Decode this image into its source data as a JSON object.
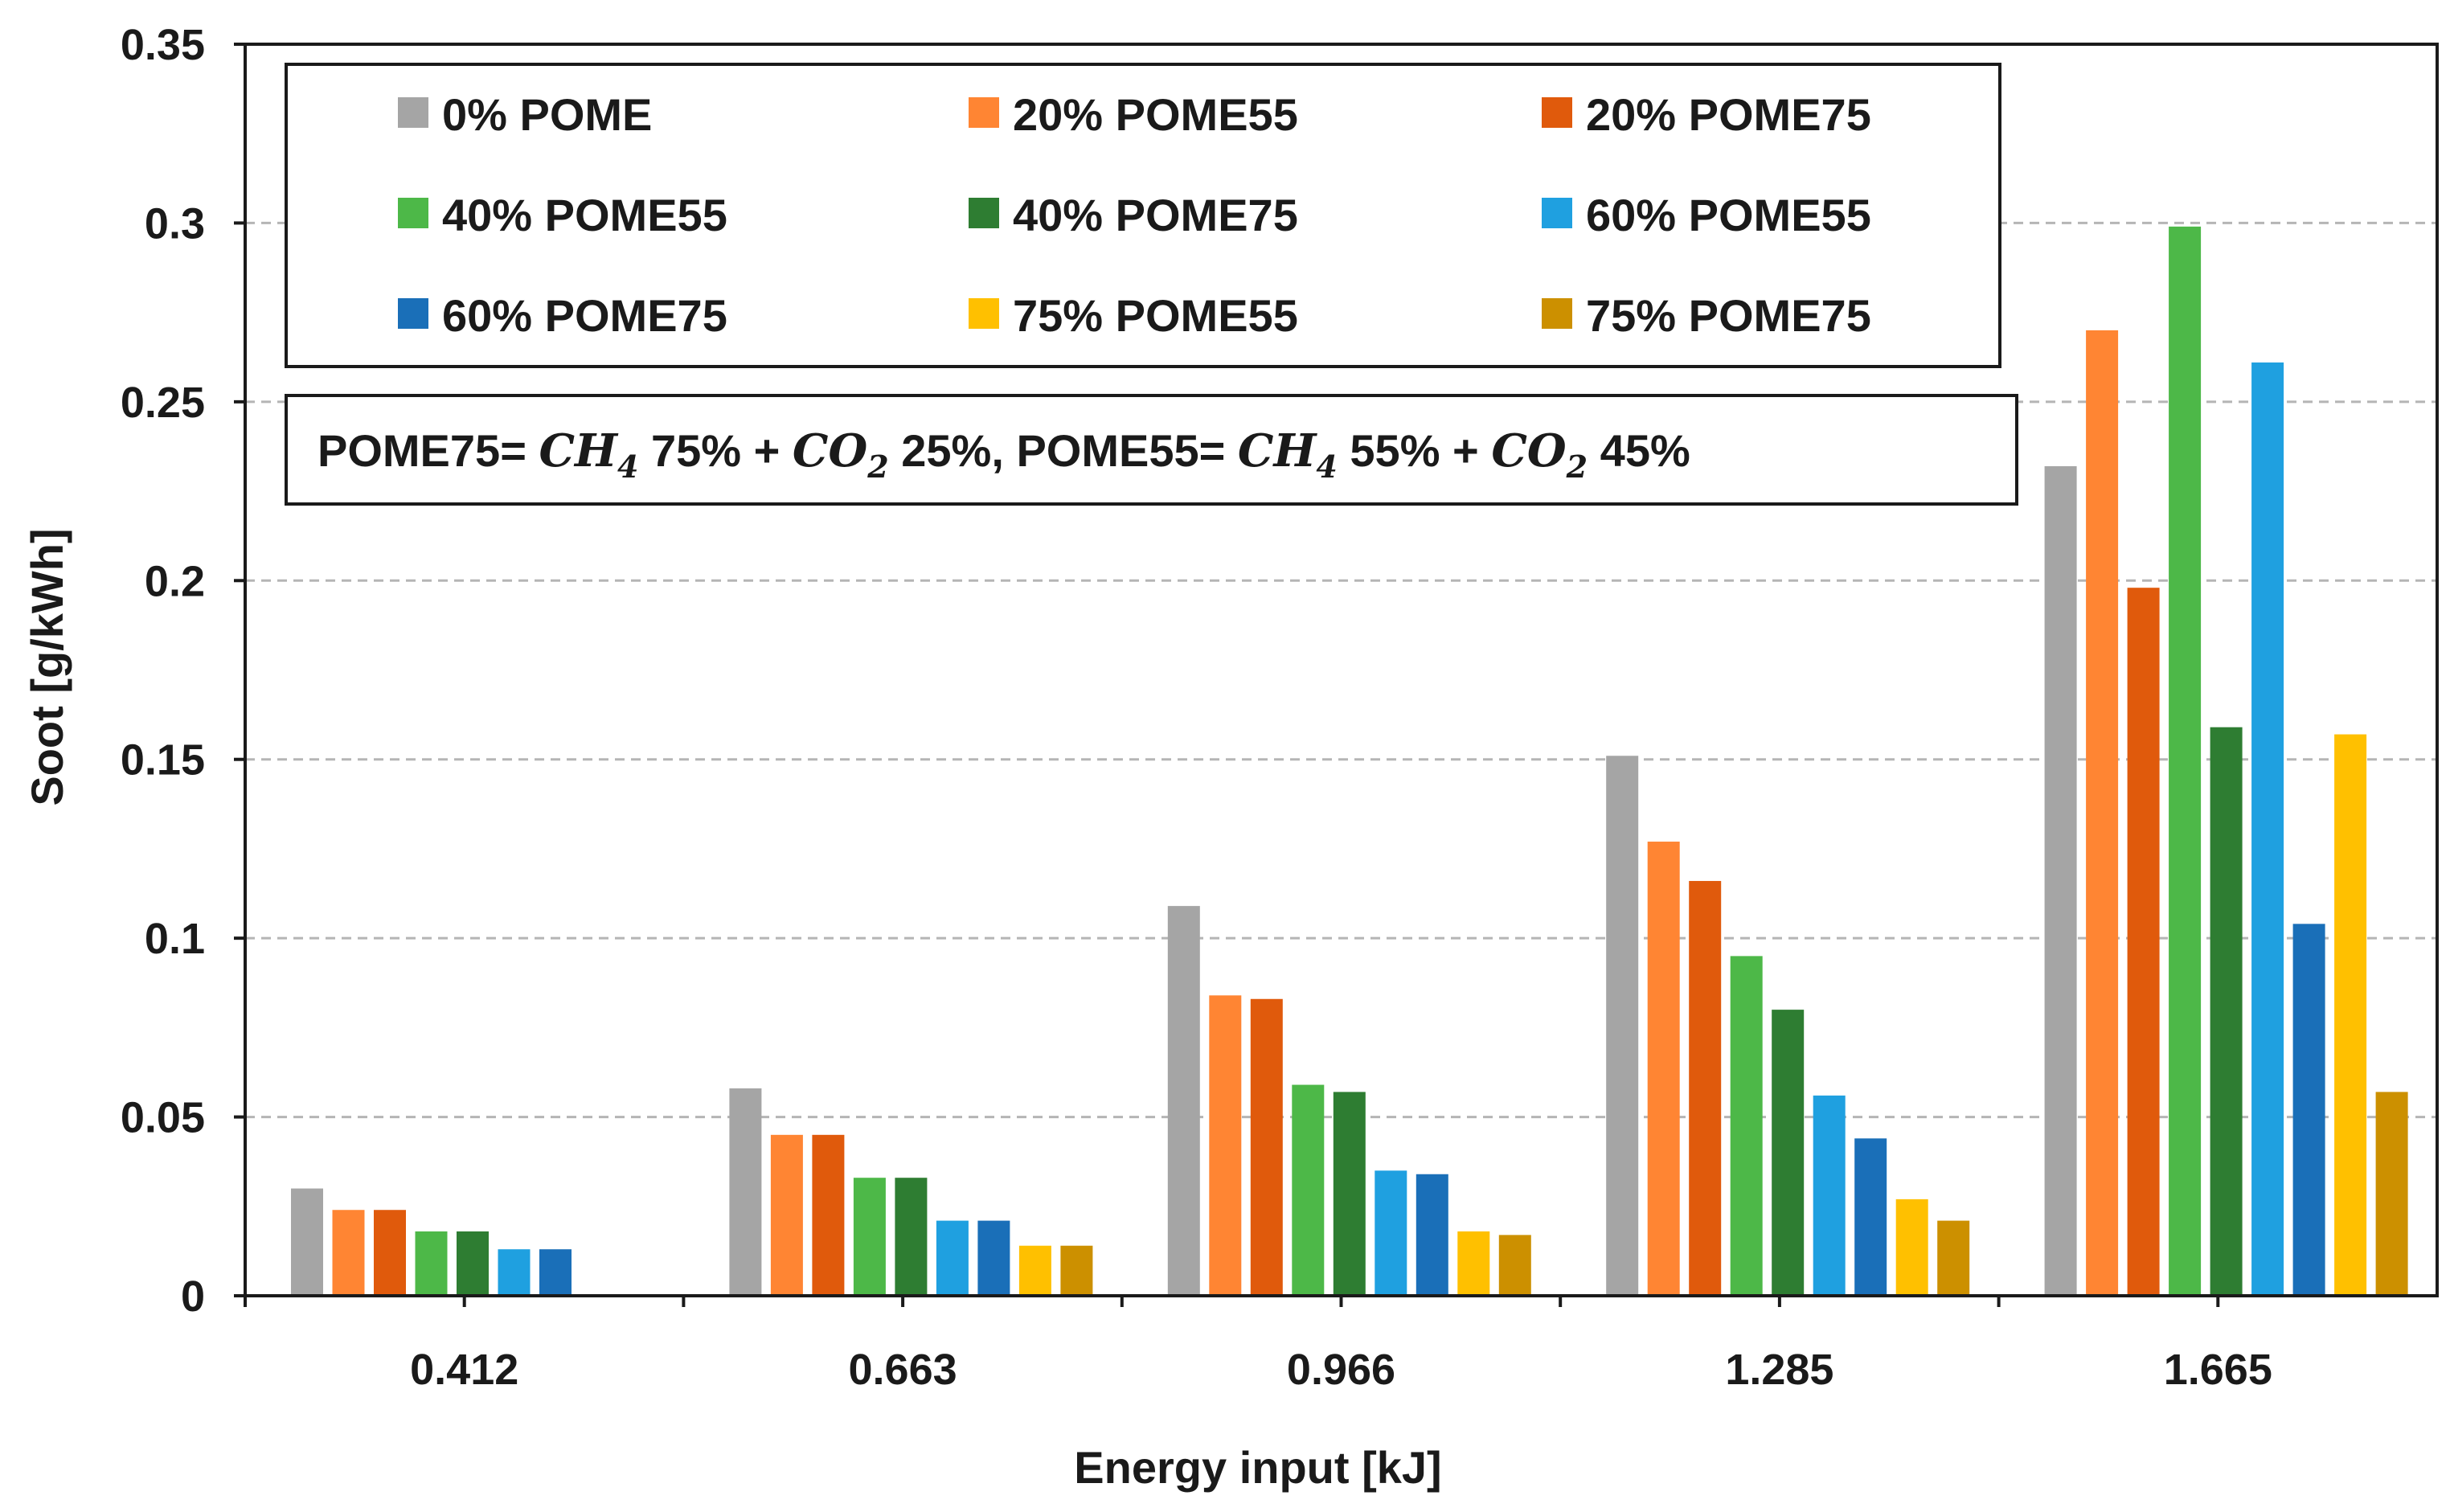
{
  "chart_data": {
    "type": "bar",
    "title": "",
    "xlabel": "Energy input [kJ]",
    "ylabel": "Soot [g/kWh]",
    "ylim": [
      0,
      0.35
    ],
    "yticks": [
      "0",
      "0.05",
      "0.1",
      "0.15",
      "0.2",
      "0.25",
      "0.3",
      "0.35"
    ],
    "grid": "horizontal dashed",
    "legend_position": "top-left inside",
    "categories": [
      "0.412",
      "0.663",
      "0.966",
      "1.285",
      "1.665"
    ],
    "series": [
      {
        "name": "0% POME",
        "color": "#a5a5a5",
        "values": [
          0.03,
          0.058,
          0.109,
          0.151,
          0.232
        ]
      },
      {
        "name": "20% POME55",
        "color": "#ff8533",
        "values": [
          0.024,
          0.045,
          0.084,
          0.127,
          0.27
        ]
      },
      {
        "name": "20% POME75",
        "color": "#e05a0c",
        "values": [
          0.024,
          0.045,
          0.083,
          0.116,
          0.198
        ]
      },
      {
        "name": "40% POME55",
        "color": "#4db848",
        "values": [
          0.018,
          0.033,
          0.059,
          0.095,
          0.299
        ]
      },
      {
        "name": "40% POME75",
        "color": "#2e7d32",
        "values": [
          0.018,
          0.033,
          0.057,
          0.08,
          0.159
        ]
      },
      {
        "name": "60% POME55",
        "color": "#1fa0e0",
        "values": [
          0.013,
          0.021,
          0.035,
          0.056,
          0.261
        ]
      },
      {
        "name": "60% POME75",
        "color": "#1a6fb8",
        "values": [
          0.013,
          0.021,
          0.034,
          0.044,
          0.104
        ]
      },
      {
        "name": "75% POME55",
        "color": "#ffc000",
        "values": [
          0.0,
          0.014,
          0.018,
          0.027,
          0.157
        ]
      },
      {
        "name": "75% POME75",
        "color": "#cc9000",
        "values": [
          0.0,
          0.014,
          0.017,
          0.021,
          0.057
        ]
      }
    ],
    "annotation": {
      "part1": "POME75= ",
      "ch4_a": "CH",
      "sub4_a": "4",
      "part2": " 75% + ",
      "co2_a": "CO",
      "sub2_a": "2",
      "part3": " 25%, POME55= ",
      "ch4_b": "CH",
      "sub4_b": "4",
      "part4": " 55% + ",
      "co2_b": "CO",
      "sub2_b": "2",
      "part5": " 45%"
    }
  }
}
